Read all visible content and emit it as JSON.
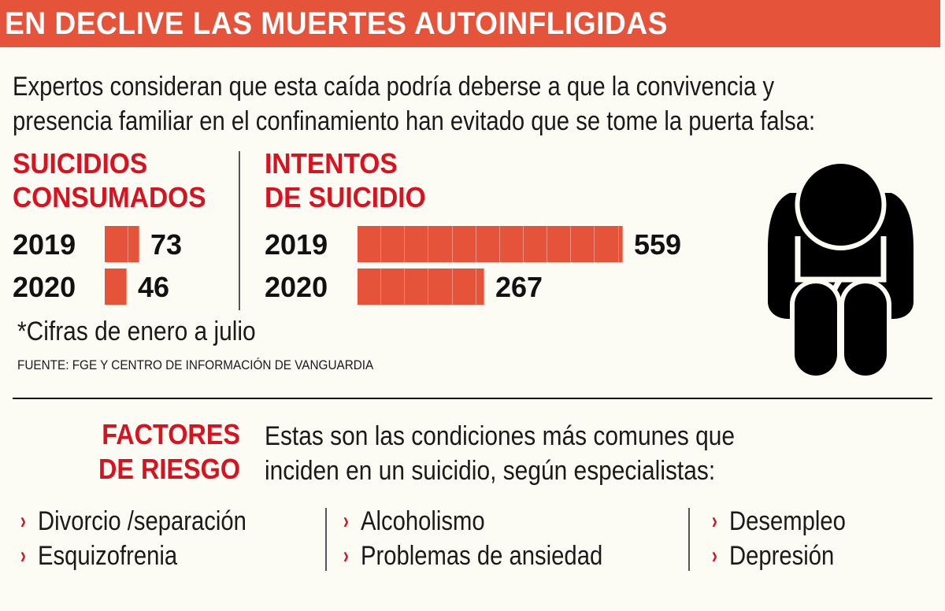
{
  "header": {
    "title": "EN DECLIVE LAS MUERTES AUTOINFLIGIDAS"
  },
  "intro": {
    "line1": "Expertos consideran que esta caída podría deberse a que la convivencia y",
    "line2": "presencia familiar en el confinamiento han evitado que se tome la puerta falsa:"
  },
  "sections": [
    {
      "title_line1": "SUICIDIOS",
      "title_line2": "CONSUMADOS",
      "rows": [
        {
          "year": "2019",
          "value": "73"
        },
        {
          "year": "2020",
          "value": "46"
        }
      ]
    },
    {
      "title_line1": "INTENTOS",
      "title_line2": "DE SUICIDIO",
      "rows": [
        {
          "year": "2019",
          "value": "559"
        },
        {
          "year": "2020",
          "value": "267"
        }
      ]
    }
  ],
  "footnote": "*Cifras de enero a julio",
  "source": "FUENTE: FGE Y CENTRO DE INFORMACIÓN DE VANGUARDIA",
  "icons": {
    "figure": "sad-person-sitting-icon",
    "bullet": "chevron-right-icon"
  },
  "factors": {
    "title_line1": "FACTORES",
    "title_line2": "DE RIESGO",
    "desc_line1": "Estas son las condiciones más comunes que",
    "desc_line2": "inciden en un suicidio, según especialistas:",
    "bullet": "›",
    "columns": [
      [
        "Divorcio /separación",
        "Esquizofrenia"
      ],
      [
        "Alcoholismo",
        "Problemas de ansiedad"
      ],
      [
        "Desempleo",
        "Depresión"
      ]
    ]
  },
  "colors": {
    "header_bg": "#e5533a",
    "bar": "#e5533a",
    "accent_red": "#d8121f",
    "background": "#fcfbf4",
    "text": "#111111"
  },
  "chart_data": [
    {
      "type": "bar",
      "orientation": "horizontal",
      "title": "SUICIDIOS CONSUMADOS",
      "categories": [
        "2019",
        "2020"
      ],
      "values": [
        73,
        46
      ],
      "xlabel": "",
      "ylabel": "",
      "grid": false,
      "legend": "none",
      "note": "*Cifras de enero a julio"
    },
    {
      "type": "bar",
      "orientation": "horizontal",
      "title": "INTENTOS DE SUICIDIO",
      "categories": [
        "2019",
        "2020"
      ],
      "values": [
        559,
        267
      ],
      "xlabel": "",
      "ylabel": "",
      "grid": false,
      "legend": "none",
      "note": "*Cifras de enero a julio"
    }
  ]
}
